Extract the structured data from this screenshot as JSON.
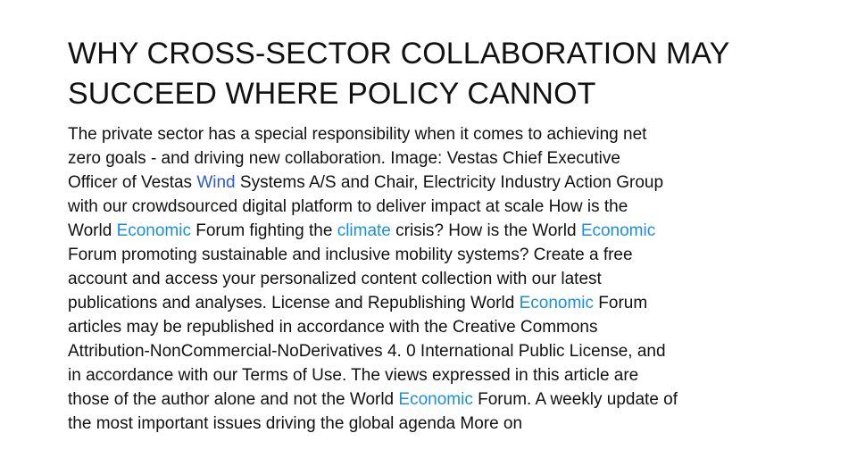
{
  "colors": {
    "text": "#111111",
    "highlight": "#1a8fe0",
    "highlight_dark": "#2f5bc4"
  },
  "article": {
    "headline_line1": "WHY CROSS-SECTOR COLLABORATION MAY",
    "headline_line2": "SUCCEED WHERE POLICY CANNOT",
    "lines": [
      {
        "segments": [
          {
            "text": "The private sector has a special responsibility when it comes to achieving net"
          }
        ]
      },
      {
        "segments": [
          {
            "text": "zero goals - and driving new collaboration. Image: Vestas Chief Executive"
          }
        ]
      },
      {
        "segments": [
          {
            "text": "Officer of Vestas "
          },
          {
            "text": "Wind",
            "highlight": "dark"
          },
          {
            "text": " Systems A/S and Chair, Electricity Industry Action Group"
          }
        ]
      },
      {
        "segments": [
          {
            "text": "with our crowdsourced digital platform to deliver impact at scale How is the"
          }
        ]
      },
      {
        "segments": [
          {
            "text": "World "
          },
          {
            "text": "Economic",
            "highlight": "light"
          },
          {
            "text": " Forum fighting the "
          },
          {
            "text": "climate",
            "highlight": "light"
          },
          {
            "text": " crisis? How is the World "
          },
          {
            "text": "Economic",
            "highlight": "light"
          }
        ]
      },
      {
        "segments": [
          {
            "text": "Forum promoting sustainable and inclusive mobility systems? Create a free"
          }
        ]
      },
      {
        "segments": [
          {
            "text": "account and access your personalized content collection with our latest"
          }
        ]
      },
      {
        "segments": [
          {
            "text": "publications and analyses. License and Republishing World "
          },
          {
            "text": "Economic",
            "highlight": "light"
          },
          {
            "text": " Forum"
          }
        ]
      },
      {
        "segments": [
          {
            "text": "articles may be republished in accordance with the Creative Commons"
          }
        ]
      },
      {
        "segments": [
          {
            "text": "Attribution-NonCommercial-NoDerivatives 4. 0 International Public License, and"
          }
        ]
      },
      {
        "segments": [
          {
            "text": "in accordance with our Terms of Use. The views expressed in this article are"
          }
        ]
      },
      {
        "segments": [
          {
            "text": "those of the author alone and not the World "
          },
          {
            "text": "Economic",
            "highlight": "light"
          },
          {
            "text": " Forum. A weekly update of"
          }
        ]
      },
      {
        "segments": [
          {
            "text": "the most important issues driving the global agenda More on"
          }
        ]
      }
    ]
  }
}
